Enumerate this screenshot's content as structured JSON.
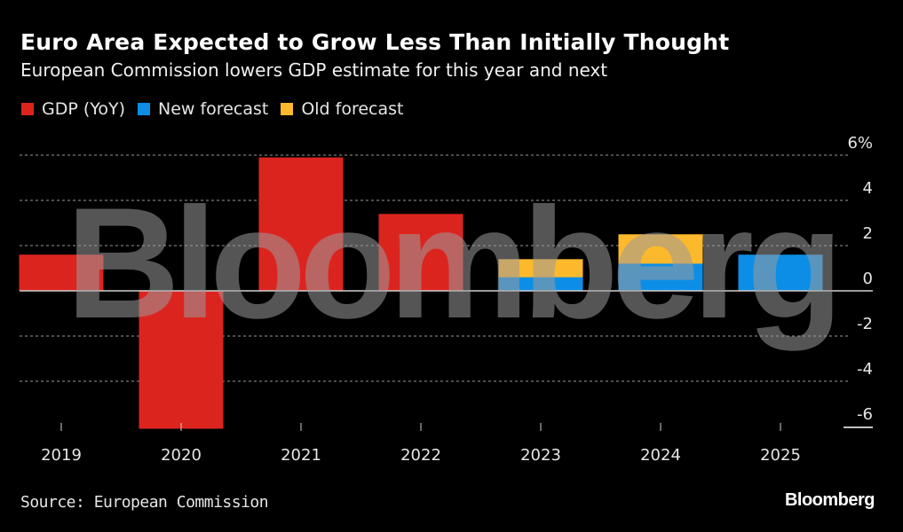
{
  "header": {
    "title": "Euro Area Expected to Grow Less Than Initially Thought",
    "subtitle": "European Commission lowers GDP estimate for this year and next"
  },
  "legend": [
    {
      "label": "GDP (YoY)",
      "color": "#dc241f"
    },
    {
      "label": "New forecast",
      "color": "#0d8ee6"
    },
    {
      "label": "Old forecast",
      "color": "#fdb92c"
    }
  ],
  "footer": {
    "source": "Source: European Commission",
    "brand": "Bloomberg"
  },
  "watermark": "Bloomberg",
  "chart_data": {
    "type": "bar",
    "title": "Euro Area Expected to Grow Less Than Initially Thought",
    "subtitle": "European Commission lowers GDP estimate for this year and next",
    "xlabel": "",
    "ylabel": "",
    "categories": [
      "2019",
      "2020",
      "2021",
      "2022",
      "2023",
      "2024",
      "2025"
    ],
    "series": [
      {
        "name": "GDP (YoY)",
        "color": "#dc241f",
        "values": [
          1.6,
          -6.1,
          5.9,
          3.4,
          null,
          null,
          null
        ]
      },
      {
        "name": "New forecast",
        "color": "#0d8ee6",
        "values": [
          null,
          null,
          null,
          null,
          0.6,
          1.2,
          1.6
        ]
      },
      {
        "name": "Old forecast",
        "color": "#fdb92c",
        "values": [
          null,
          null,
          null,
          null,
          1.4,
          2.5,
          null
        ]
      }
    ],
    "ylim": [
      -6,
      6
    ],
    "yticks": [
      6,
      4,
      2,
      0,
      -2,
      -4,
      -6
    ],
    "ytick_labels": [
      "6%",
      "4",
      "2",
      "0",
      "-2",
      "-4",
      "-6"
    ],
    "y_axis_side": "right",
    "grid": true,
    "legend_position": "top-left",
    "source": "Source: European Commission"
  }
}
